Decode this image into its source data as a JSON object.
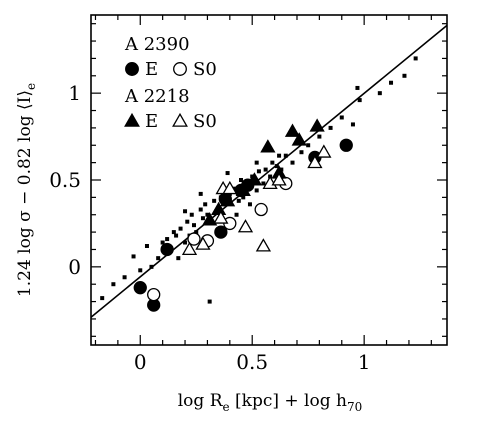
{
  "chart_data": {
    "type": "scatter",
    "xlabel": "log R_e [kpc] + log h_70",
    "ylabel": "1.24 log σ − 0.82 log ⟨I⟩_e",
    "xlim": [
      -0.22,
      1.37
    ],
    "ylim": [
      -0.45,
      1.45
    ],
    "x_ticks": [
      "0",
      "0.5",
      "1"
    ],
    "y_ticks": [
      "0",
      "0.5",
      "1"
    ],
    "grid": false,
    "legend": {
      "placement": "top-left",
      "groups": [
        {
          "title": "A 2390",
          "entries": [
            {
              "marker": "filled-circle",
              "label": "E"
            },
            {
              "marker": "open-circle",
              "label": "S0"
            }
          ]
        },
        {
          "title": "A 2218",
          "entries": [
            {
              "marker": "filled-triangle",
              "label": "E"
            },
            {
              "marker": "open-triangle",
              "label": "S0"
            }
          ]
        }
      ]
    },
    "fit_line": {
      "x": [
        -0.22,
        1.37
      ],
      "y": [
        -0.29,
        1.39
      ]
    },
    "series": [
      {
        "marker": "small-square",
        "x": [
          -0.17,
          -0.12,
          -0.07,
          -0.03,
          0.0,
          0.03,
          0.05,
          0.08,
          0.1,
          0.12,
          0.13,
          0.15,
          0.16,
          0.17,
          0.18,
          0.2,
          0.21,
          0.22,
          0.23,
          0.24,
          0.25,
          0.27,
          0.28,
          0.29,
          0.3,
          0.31,
          0.33,
          0.34,
          0.36,
          0.38,
          0.4,
          0.42,
          0.44,
          0.45,
          0.46,
          0.48,
          0.5,
          0.52,
          0.53,
          0.55,
          0.56,
          0.58,
          0.59,
          0.61,
          0.63,
          0.65,
          0.68,
          0.72,
          0.75,
          0.8,
          0.85,
          0.9,
          0.98,
          1.07,
          1.12,
          1.18,
          1.23,
          0.31,
          0.2,
          0.39,
          0.43,
          0.27,
          0.49,
          0.52,
          0.62,
          0.7,
          0.95,
          0.97
        ],
        "y": [
          -0.18,
          -0.1,
          -0.06,
          0.06,
          -0.02,
          0.12,
          0.0,
          0.05,
          0.14,
          0.16,
          0.1,
          0.2,
          0.18,
          0.05,
          0.22,
          0.14,
          0.26,
          0.18,
          0.3,
          0.24,
          0.2,
          0.33,
          0.28,
          0.36,
          0.3,
          0.25,
          0.38,
          0.32,
          0.4,
          0.36,
          0.42,
          0.45,
          0.38,
          0.5,
          0.4,
          0.47,
          0.52,
          0.44,
          0.55,
          0.48,
          0.56,
          0.52,
          0.6,
          0.58,
          0.56,
          0.64,
          0.6,
          0.66,
          0.7,
          0.75,
          0.8,
          0.86,
          0.96,
          1.0,
          1.06,
          1.1,
          1.2,
          -0.2,
          0.32,
          0.54,
          0.3,
          0.42,
          0.36,
          0.6,
          0.64,
          0.72,
          0.82,
          1.03
        ]
      },
      {
        "name": "A 2390 E",
        "marker": "filled-circle",
        "x": [
          0.0,
          0.06,
          0.12,
          0.36,
          0.38,
          0.45,
          0.48,
          0.78,
          0.92
        ],
        "y": [
          -0.12,
          -0.22,
          0.1,
          0.2,
          0.39,
          0.44,
          0.47,
          0.63,
          0.7
        ]
      },
      {
        "name": "A 2390 S0",
        "marker": "open-circle",
        "x": [
          0.06,
          0.24,
          0.3,
          0.4,
          0.54,
          0.65
        ],
        "y": [
          -0.16,
          0.16,
          0.15,
          0.25,
          0.33,
          0.48
        ]
      },
      {
        "name": "A 2218 E",
        "marker": "filled-triangle",
        "x": [
          0.31,
          0.35,
          0.39,
          0.46,
          0.51,
          0.57,
          0.62,
          0.68,
          0.71,
          0.79
        ],
        "y": [
          0.27,
          0.33,
          0.38,
          0.44,
          0.5,
          0.69,
          0.54,
          0.78,
          0.73,
          0.81
        ]
      },
      {
        "name": "A 2218 S0",
        "marker": "open-triangle",
        "x": [
          0.22,
          0.28,
          0.36,
          0.37,
          0.4,
          0.47,
          0.55,
          0.58,
          0.62,
          0.78,
          0.82
        ],
        "y": [
          0.1,
          0.13,
          0.28,
          0.45,
          0.45,
          0.23,
          0.12,
          0.48,
          0.5,
          0.6,
          0.66
        ]
      }
    ]
  }
}
